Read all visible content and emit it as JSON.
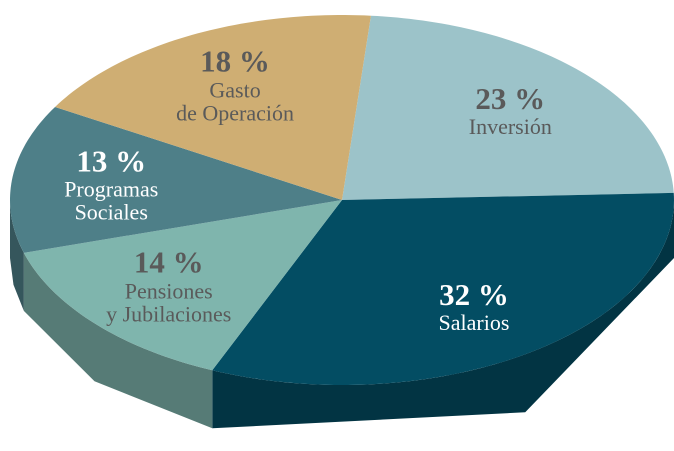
{
  "chart_data": {
    "type": "pie",
    "categories": [
      "Inversión",
      "Salarios",
      "Pensiones\ny Jubilaciones",
      "Programas\nSociales",
      "Gasto\nde Operación"
    ],
    "values": [
      23,
      32,
      14,
      13,
      18
    ],
    "value_labels": [
      "23 %",
      "32 %",
      "14 %",
      "13 %",
      "18 %"
    ],
    "colors": [
      "#9cc3c9",
      "#034d63",
      "#7fb5ad",
      "#4e7f88",
      "#cfae73"
    ]
  }
}
